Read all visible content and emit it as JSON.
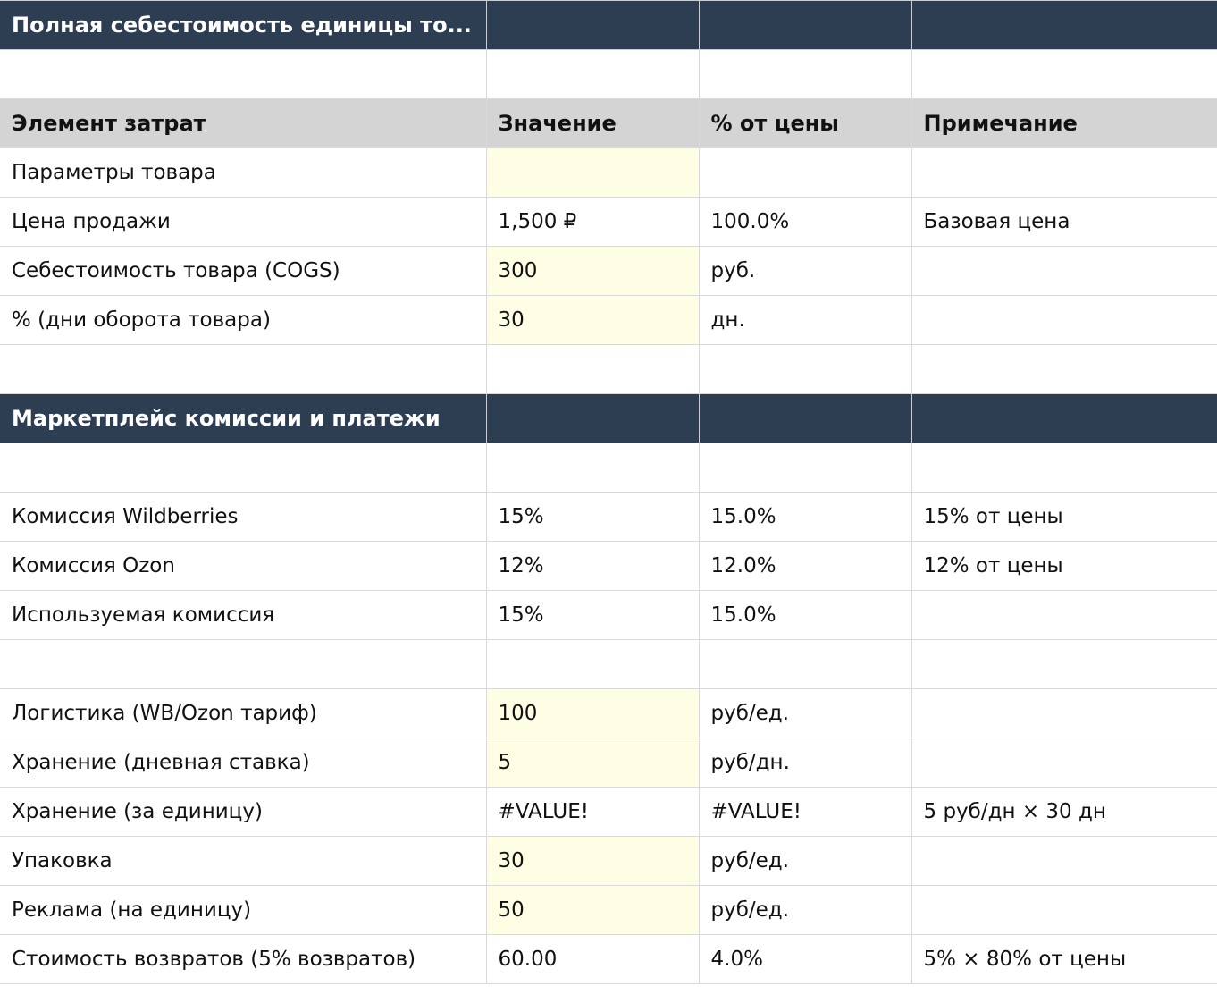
{
  "colors": {
    "section_band": "#2e3e52",
    "column_header": "#d4d4d4",
    "input_cell": "#fefee4",
    "grid_line": "#d9d9d9"
  },
  "sheet": {
    "title": "Полная себестоимость единицы то...",
    "headers": {
      "element": "Элемент затрат",
      "value": "Значение",
      "percent": "% от цены",
      "note": "Примечание"
    },
    "section_product_label": "Параметры товара",
    "price": {
      "label": "Цена продажи",
      "value": "1,500 ₽",
      "percent": "100.0%",
      "note": "Базовая цена"
    },
    "cogs": {
      "label": "Себестоимость товара (COGS)",
      "value": "300",
      "unit": "руб."
    },
    "turnover": {
      "label": "% (дни оборота товара)",
      "value": "30",
      "unit": "дн."
    },
    "section_marketplace_title": "Маркетплейс комиссии и платежи",
    "wb_commission": {
      "label": "Комиссия Wildberries",
      "value": "15%",
      "percent": "15.0%",
      "note": "15% от цены"
    },
    "ozon_commission": {
      "label": "Комиссия Ozon",
      "value": "12%",
      "percent": "12.0%",
      "note": "12% от цены"
    },
    "used_commission": {
      "label": "Используемая комиссия",
      "value": "15%",
      "percent": "15.0%"
    },
    "logistics": {
      "label": "Логистика (WB/Ozon тариф)",
      "value": "100",
      "unit": "руб/ед."
    },
    "storage_daily": {
      "label": "Хранение (дневная ставка)",
      "value": "5",
      "unit": "руб/дн."
    },
    "storage_unit": {
      "label": "Хранение (за единицу)",
      "value": "#VALUE!",
      "percent": "#VALUE!",
      "note": "5 руб/дн × 30 дн"
    },
    "packaging": {
      "label": "Упаковка",
      "value": "30",
      "unit": "руб/ед."
    },
    "advertising": {
      "label": "Реклама (на единицу)",
      "value": "50",
      "unit": "руб/ед."
    },
    "returns": {
      "label": "Стоимость возвратов (5% возвратов)",
      "value": "60.00",
      "percent": "4.0%",
      "note": "5% × 80% от цены"
    }
  }
}
